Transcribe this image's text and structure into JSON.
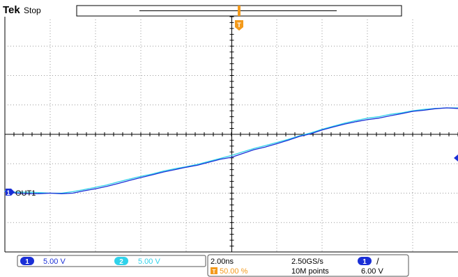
{
  "header": {
    "brand": "Tek",
    "status": "Stop"
  },
  "trigger": {
    "marker": "T",
    "position_percent": 50.0
  },
  "channel_label": {
    "number": "1",
    "name": "OUT1"
  },
  "readouts": {
    "ch1": {
      "number": "1",
      "scale": "5.00 V"
    },
    "ch2": {
      "number": "2",
      "scale": "5.00 V"
    },
    "timebase": "2.00ns",
    "sample_rate": "2.50GS/s",
    "trigger_position": "50.00 %",
    "record_length": "10M points",
    "trigger_source": "1",
    "trigger_slope": "/",
    "trigger_level": "6.00 V"
  },
  "colors": {
    "ch1": "#1a2fd6",
    "ch2": "#2fd2ea",
    "trigger": "#f39a1c",
    "grid": "#9a9a9a"
  },
  "chart_data": {
    "type": "line",
    "xlim": [
      -10,
      10
    ],
    "ylim": [
      -4,
      4
    ],
    "x_unit": "ns",
    "y_unit": "div",
    "series": [
      {
        "channel": "1",
        "color": "#1a2fd6",
        "x": [
          -10,
          -9.5,
          -9,
          -8.5,
          -8,
          -7.5,
          -7,
          -6.5,
          -6,
          -5.5,
          -5,
          -4.5,
          -4,
          -3.5,
          -3,
          -2.5,
          -2,
          -1.5,
          -1,
          -0.5,
          0,
          0.5,
          1,
          1.5,
          2,
          2.5,
          3,
          3.5,
          4,
          4.5,
          5,
          5.5,
          6,
          6.5,
          7,
          7.5,
          8,
          8.5,
          9,
          9.5,
          10
        ],
        "y": [
          -1.95,
          -2.0,
          -2.02,
          -2.02,
          -2.0,
          -2.02,
          -2.0,
          -1.92,
          -1.85,
          -1.77,
          -1.67,
          -1.57,
          -1.47,
          -1.38,
          -1.28,
          -1.2,
          -1.12,
          -1.05,
          -0.95,
          -0.85,
          -0.78,
          -0.65,
          -0.52,
          -0.43,
          -0.32,
          -0.2,
          -0.07,
          0.02,
          0.15,
          0.25,
          0.35,
          0.43,
          0.5,
          0.55,
          0.63,
          0.7,
          0.78,
          0.82,
          0.87,
          0.9,
          0.88
        ]
      },
      {
        "channel": "2",
        "color": "#2fd2ea",
        "x": [
          -10,
          -9.5,
          -9,
          -8.5,
          -8,
          -7.5,
          -7,
          -6.5,
          -6,
          -5.5,
          -5,
          -4.5,
          -4,
          -3.5,
          -3,
          -2.5,
          -2,
          -1.5,
          -1,
          -0.5,
          0,
          0.5,
          1,
          1.5,
          2,
          2.5,
          3,
          3.5,
          4,
          4.5,
          5,
          5.5,
          6,
          6.5,
          7,
          7.5,
          8,
          8.5,
          9,
          9.5,
          10
        ],
        "y": [
          -1.93,
          -1.97,
          -1.97,
          -1.98,
          -2.0,
          -2.0,
          -1.95,
          -1.88,
          -1.8,
          -1.72,
          -1.62,
          -1.52,
          -1.43,
          -1.35,
          -1.25,
          -1.17,
          -1.1,
          -1.02,
          -0.92,
          -0.82,
          -0.72,
          -0.6,
          -0.48,
          -0.38,
          -0.28,
          -0.17,
          -0.05,
          0.05,
          0.17,
          0.28,
          0.38,
          0.47,
          0.55,
          0.6,
          0.68,
          0.73,
          0.8,
          0.85,
          0.88,
          0.9,
          0.9
        ]
      }
    ]
  }
}
